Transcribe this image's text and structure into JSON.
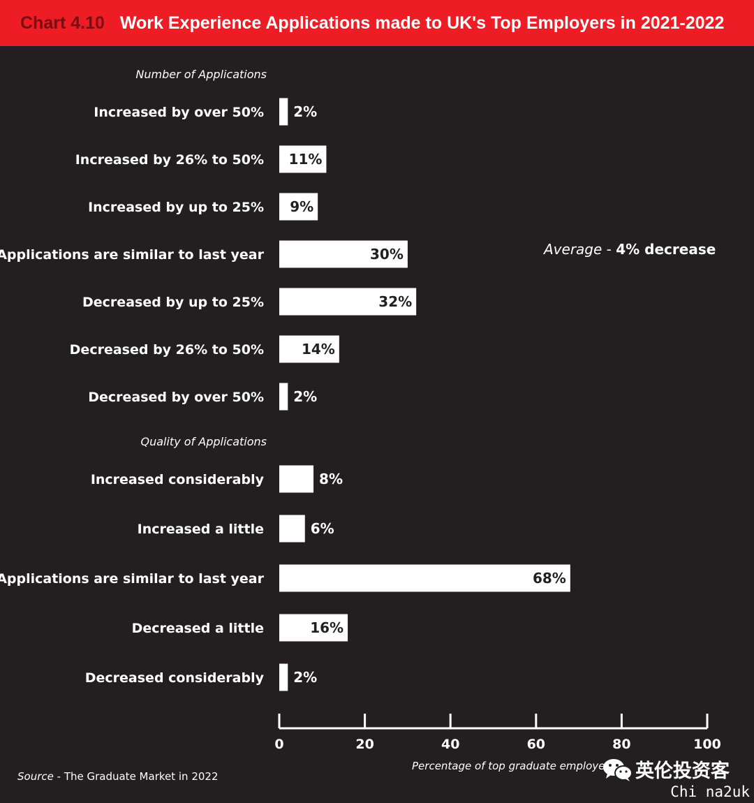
{
  "header": {
    "chart_number": "Chart 4.10",
    "title": "Work Experience Applications made to UK's Top Employers in 2021-2022"
  },
  "chart_data": {
    "type": "bar",
    "orientation": "horizontal",
    "groups": [
      {
        "title": "Number of Applications",
        "categories": [
          "Increased by over 50%",
          "Increased by 26% to 50%",
          "Increased by up to 25%",
          "Applications are similar to last year",
          "Decreased by up to 25%",
          "Decreased by 26% to 50%",
          "Decreased by over 50%"
        ],
        "values": [
          2,
          11,
          9,
          30,
          32,
          14,
          2
        ],
        "value_labels": [
          "2%",
          "11%",
          "9%",
          "30%",
          "32%",
          "14%",
          "2%"
        ]
      },
      {
        "title": "Quality  of Applications",
        "categories": [
          "Increased considerably",
          "Increased a little",
          "Applications are similar to last year",
          "Decreased a little",
          "Decreased considerably"
        ],
        "values": [
          8,
          6,
          68,
          16,
          2
        ],
        "value_labels": [
          "8%",
          "6%",
          "68%",
          "16%",
          "2%"
        ]
      }
    ],
    "xlim": [
      0,
      100
    ],
    "xticks": [
      0,
      20,
      40,
      60,
      80,
      100
    ],
    "xlabel": "Percentage of top graduate employers",
    "grid": false,
    "bar_color": "#ffffff",
    "background_color": "#231f20"
  },
  "annotation": {
    "average_word": "Average",
    "average_sep": " - ",
    "average_value": "4% decrease"
  },
  "source": {
    "key": "Source",
    "sep": " - ",
    "text": "The Graduate Market in 2022"
  },
  "watermark": {
    "icon": "wechat-icon",
    "text": "英伦投资客",
    "sub": "Chi na2uk"
  },
  "colors": {
    "header_red": "#ee1c25",
    "chart_number": "#7a0d12"
  }
}
